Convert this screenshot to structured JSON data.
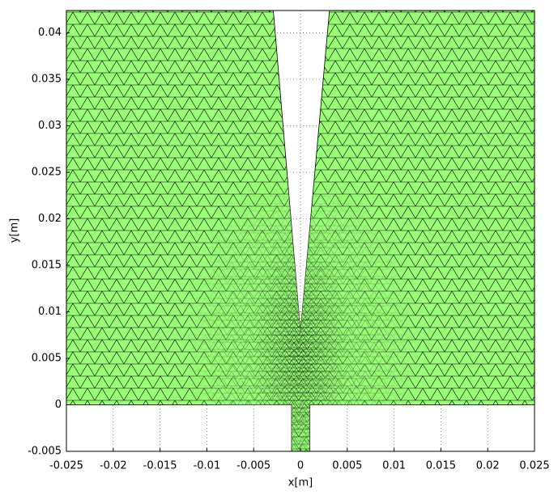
{
  "chart_data": {
    "type": "mesh",
    "color": "#99ff77",
    "edge_color": "#000000",
    "x": [
      -0.025,
      -0.00095,
      -0.00095,
      0.001,
      0.001,
      0.025,
      0.025,
      0.0031,
      0,
      -0.0029,
      -0.025
    ],
    "y": [
      0,
      0,
      -0.005,
      -0.005,
      0,
      0,
      0.0424,
      0.0424,
      0.0079,
      0.0424,
      0.0424
    ],
    "xlim": [
      -0.025,
      0.025
    ],
    "ylim": [
      -0.005,
      0.0424
    ],
    "xticks": [
      -0.025,
      -0.02,
      -0.015,
      -0.01,
      -0.005,
      0,
      0.005,
      0.01,
      0.015,
      0.02,
      0.025
    ],
    "yticks": [
      -0.005,
      0,
      0.005,
      0.01,
      0.015,
      0.02,
      0.025,
      0.03,
      0.035,
      0.04
    ],
    "xlabel": "x[m]",
    "ylabel": "y[m]",
    "grid": true
  }
}
